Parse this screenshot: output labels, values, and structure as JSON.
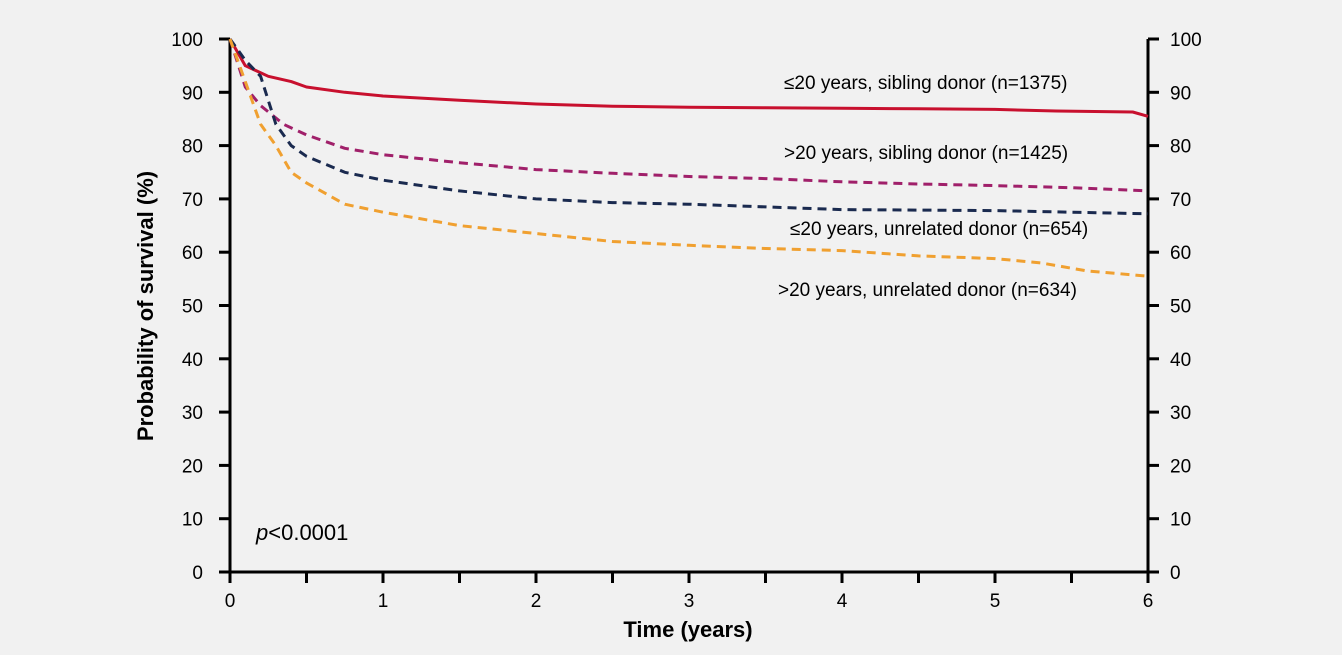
{
  "chart_data": {
    "type": "line",
    "xlabel": "Time (years)",
    "ylabel": "Probability of survival (%)",
    "xlim": [
      0,
      6
    ],
    "ylim": [
      0,
      100
    ],
    "x_ticks": [
      "0",
      "1",
      "2",
      "3",
      "4",
      "5",
      "6"
    ],
    "y_ticks": [
      "0",
      "10",
      "20",
      "30",
      "40",
      "50",
      "60",
      "70",
      "80",
      "90",
      "100"
    ],
    "y_ticks_right": [
      "0",
      "10",
      "20",
      "30",
      "40",
      "50",
      "60",
      "70",
      "80",
      "90",
      "100"
    ],
    "grid": false,
    "annotation": {
      "italic": "p",
      "rest": "<0.0001"
    },
    "series": [
      {
        "name": "≤20 years, sibling donor (n=1375)",
        "color": "#c8102e",
        "style": "solid",
        "points": [
          [
            0,
            100
          ],
          [
            0.1,
            95
          ],
          [
            0.25,
            93
          ],
          [
            0.4,
            92
          ],
          [
            0.5,
            91
          ],
          [
            0.75,
            90
          ],
          [
            1,
            89.3
          ],
          [
            1.5,
            88.5
          ],
          [
            2,
            87.8
          ],
          [
            2.5,
            87.4
          ],
          [
            3,
            87.2
          ],
          [
            3.5,
            87.1
          ],
          [
            4,
            87.0
          ],
          [
            4.5,
            86.9
          ],
          [
            5,
            86.8
          ],
          [
            5.4,
            86.5
          ],
          [
            5.9,
            86.3
          ],
          [
            6,
            85.5
          ]
        ]
      },
      {
        "name": ">20 years, sibling donor (n=1425)",
        "color": "#a0206a",
        "style": "dashed",
        "points": [
          [
            0,
            100
          ],
          [
            0.1,
            91
          ],
          [
            0.2,
            87.5
          ],
          [
            0.35,
            84
          ],
          [
            0.5,
            82
          ],
          [
            0.75,
            79.5
          ],
          [
            1,
            78.3
          ],
          [
            1.5,
            76.8
          ],
          [
            2,
            75.5
          ],
          [
            2.5,
            74.8
          ],
          [
            3,
            74.2
          ],
          [
            3.5,
            73.8
          ],
          [
            4,
            73.2
          ],
          [
            4.5,
            72.8
          ],
          [
            5,
            72.5
          ],
          [
            5.5,
            72.1
          ],
          [
            6,
            71.5
          ]
        ]
      },
      {
        "name": "≤20 years, unrelated donor (n=654)",
        "color": "#1a2a4f",
        "style": "dashed",
        "points": [
          [
            0,
            100
          ],
          [
            0.1,
            96
          ],
          [
            0.2,
            93
          ],
          [
            0.3,
            84
          ],
          [
            0.4,
            80
          ],
          [
            0.5,
            78
          ],
          [
            0.75,
            75
          ],
          [
            1,
            73.5
          ],
          [
            1.5,
            71.5
          ],
          [
            2,
            70
          ],
          [
            2.5,
            69.3
          ],
          [
            3,
            69
          ],
          [
            3.5,
            68.5
          ],
          [
            4,
            68
          ],
          [
            4.5,
            67.9
          ],
          [
            5,
            67.8
          ],
          [
            5.5,
            67.5
          ],
          [
            6,
            67.2
          ]
        ]
      },
      {
        "name": ">20 years, unrelated donor (n=634)",
        "color": "#f0a030",
        "style": "dashed",
        "points": [
          [
            0,
            100
          ],
          [
            0.1,
            92
          ],
          [
            0.2,
            84
          ],
          [
            0.3,
            80
          ],
          [
            0.4,
            75
          ],
          [
            0.5,
            73
          ],
          [
            0.75,
            69
          ],
          [
            1,
            67.5
          ],
          [
            1.5,
            65
          ],
          [
            2,
            63.5
          ],
          [
            2.5,
            62
          ],
          [
            3,
            61.3
          ],
          [
            3.5,
            60.7
          ],
          [
            4,
            60.3
          ],
          [
            4.5,
            59.3
          ],
          [
            5,
            58.8
          ],
          [
            5.3,
            58
          ],
          [
            5.6,
            56.5
          ],
          [
            6,
            55.5
          ]
        ]
      }
    ]
  }
}
